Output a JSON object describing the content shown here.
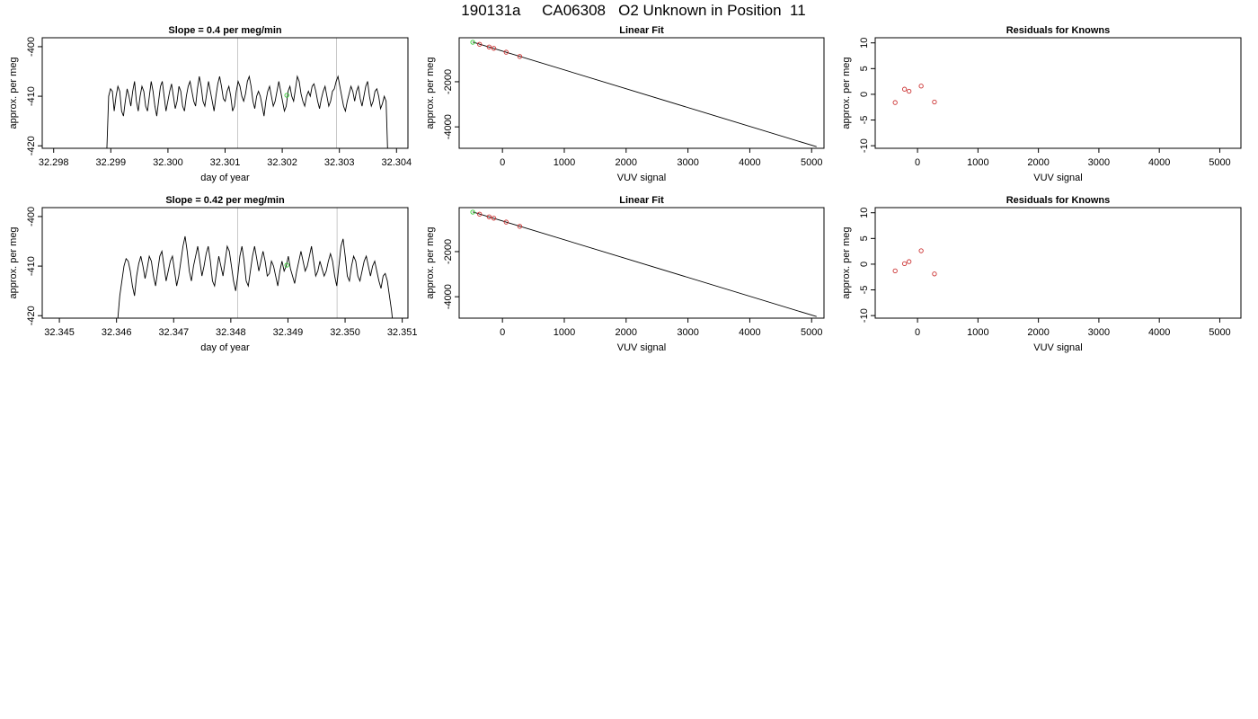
{
  "page": {
    "title": "190131a     CA06308   O2 Unknown in Position  11"
  },
  "colors": {
    "trace": "#000000",
    "marker_green": "#33cc33",
    "marker_red": "#cc3333",
    "vline": "#c8c8c8"
  },
  "chart_data": [
    {
      "type": "line",
      "title": "Slope =  0.4  per meg/min",
      "xlabel": "day of year",
      "ylabel": "approx. per meg",
      "xlim": [
        32.2978,
        32.3042
      ],
      "ylim": [
        -420.5,
        -398.2
      ],
      "xticks": [
        "32.298",
        "32.299",
        "32.300",
        "32.301",
        "32.302",
        "32.303",
        "32.304"
      ],
      "yticks": [
        "-400",
        "-410",
        "-420"
      ],
      "vlines": [
        32.30122,
        32.30295
      ],
      "series": [
        {
          "x_start": 32.29893,
          "x_end": 32.30385,
          "values": [
            -421,
            -410,
            -408.5,
            -409,
            -413,
            -410,
            -408,
            -409,
            -413,
            -414,
            -411,
            -408.5,
            -410,
            -412,
            -409,
            -407,
            -411,
            -413,
            -410,
            -408,
            -409,
            -412,
            -413,
            -410,
            -407,
            -409,
            -412,
            -414,
            -411,
            -408,
            -407,
            -410,
            -413,
            -411,
            -409,
            -407.5,
            -410,
            -412.5,
            -411,
            -408,
            -409,
            -412,
            -413,
            -410,
            -408,
            -407,
            -409,
            -411,
            -412,
            -408.5,
            -406,
            -408,
            -411,
            -412,
            -409.5,
            -407,
            -409,
            -411,
            -413,
            -410,
            -407.5,
            -406,
            -408,
            -410.5,
            -411,
            -409,
            -408,
            -410,
            -413,
            -412,
            -409,
            -407,
            -408,
            -410,
            -411,
            -409.5,
            -407,
            -406,
            -408,
            -411,
            -412.5,
            -410,
            -409,
            -410,
            -412,
            -414,
            -411,
            -409,
            -408,
            -410,
            -412,
            -411,
            -409,
            -407,
            -409,
            -411,
            -413,
            -412,
            -409,
            -408,
            -410,
            -411,
            -408.5,
            -406,
            -407,
            -409.5,
            -411,
            -412,
            -410,
            -409,
            -410,
            -408,
            -407.5,
            -409,
            -411,
            -412.5,
            -410.5,
            -409,
            -408,
            -410,
            -412,
            -411,
            -409,
            -408.5,
            -407,
            -406,
            -408,
            -410,
            -412,
            -413,
            -411,
            -409.5,
            -408,
            -409,
            -411,
            -409,
            -408,
            -410.5,
            -412,
            -410,
            -408,
            -407,
            -410,
            -412,
            -411,
            -409,
            -408.5,
            -410,
            -412.5,
            -411.5,
            -410,
            -411,
            -423
          ]
        }
      ],
      "markers": [
        {
          "x": 32.30208,
          "y": -409.8,
          "color": "green"
        }
      ]
    },
    {
      "type": "scatter",
      "title": "Linear Fit",
      "xlabel": "VUV signal",
      "ylabel": "approx. per meg",
      "xlim": [
        -700,
        5200
      ],
      "ylim": [
        -4950,
        -50
      ],
      "xticks": [
        "0",
        "1000",
        "2000",
        "3000",
        "4000",
        "5000"
      ],
      "yticks": [
        "-2000",
        "-4000"
      ],
      "fit_line": {
        "x": [
          -480,
          5080
        ],
        "y": [
          -240,
          -4880
        ]
      },
      "points": [
        {
          "x": -480,
          "y": -250,
          "color": "green"
        },
        {
          "x": -370,
          "y": -340,
          "color": "red"
        },
        {
          "x": -215,
          "y": -460,
          "color": "red"
        },
        {
          "x": -140,
          "y": -520,
          "color": "red"
        },
        {
          "x": 60,
          "y": -690,
          "color": "red"
        },
        {
          "x": 280,
          "y": -880,
          "color": "red"
        }
      ]
    },
    {
      "type": "scatter",
      "title": "Residuals for Knowns",
      "xlabel": "VUV signal",
      "ylabel": "approx. per meg",
      "xlim": [
        -700,
        5350
      ],
      "ylim": [
        -10.5,
        11
      ],
      "xticks": [
        "0",
        "1000",
        "2000",
        "3000",
        "4000",
        "5000"
      ],
      "yticks": [
        "10",
        "5",
        "0",
        "-5",
        "-10"
      ],
      "points": [
        {
          "x": -370,
          "y": -1.6,
          "color": "red"
        },
        {
          "x": -215,
          "y": 1.0,
          "color": "red"
        },
        {
          "x": -140,
          "y": 0.6,
          "color": "red"
        },
        {
          "x": 60,
          "y": 1.6,
          "color": "red"
        },
        {
          "x": 280,
          "y": -1.5,
          "color": "red"
        }
      ]
    },
    {
      "type": "line",
      "title": "Slope =  0.42  per meg/min",
      "xlabel": "day of year",
      "ylabel": "approx. per meg",
      "xlim": [
        32.3447,
        32.3511
      ],
      "ylim": [
        -420.5,
        -398.2
      ],
      "xticks": [
        "32.345",
        "32.346",
        "32.347",
        "32.348",
        "32.349",
        "32.350",
        "32.351"
      ],
      "yticks": [
        "-400",
        "-410",
        "-420"
      ],
      "vlines": [
        32.34812,
        32.34986
      ],
      "series": [
        {
          "x_start": 32.34602,
          "x_end": 32.35085,
          "values": [
            -421,
            -416,
            -413,
            -410,
            -408.5,
            -409,
            -411,
            -414,
            -416,
            -412,
            -409.5,
            -408,
            -410,
            -412.5,
            -410.5,
            -408,
            -409,
            -412,
            -414,
            -411,
            -408,
            -407,
            -410,
            -413,
            -411,
            -409,
            -408,
            -411,
            -414,
            -412,
            -409,
            -406,
            -404,
            -407,
            -411,
            -413,
            -410,
            -408,
            -406,
            -409,
            -412,
            -410,
            -407.5,
            -406,
            -409,
            -413,
            -414,
            -411,
            -408,
            -410,
            -412,
            -409,
            -406,
            -407,
            -410,
            -413,
            -415,
            -412,
            -408,
            -406,
            -409,
            -413,
            -414,
            -411,
            -408,
            -406,
            -408.5,
            -411,
            -409,
            -407,
            -409,
            -412,
            -411.5,
            -409,
            -410,
            -412,
            -414,
            -411,
            -409,
            -411,
            -410,
            -408,
            -410.5,
            -412,
            -413.5,
            -411,
            -409,
            -407,
            -409,
            -411,
            -410,
            -408,
            -406,
            -409,
            -412,
            -411,
            -409,
            -410.5,
            -412,
            -411,
            -409,
            -407.5,
            -409,
            -412,
            -414,
            -410,
            -406,
            -404.5,
            -408,
            -412,
            -413,
            -410,
            -408,
            -409,
            -412,
            -413,
            -411,
            -409,
            -408,
            -410,
            -412,
            -410,
            -409,
            -411,
            -413,
            -414.5,
            -412,
            -411.5,
            -413,
            -416,
            -419,
            -423
          ]
        }
      ],
      "markers": [
        {
          "x": 32.34898,
          "y": -409.8,
          "color": "green"
        }
      ]
    },
    {
      "type": "scatter",
      "title": "Linear Fit",
      "xlabel": "VUV signal",
      "ylabel": "approx. per meg",
      "xlim": [
        -700,
        5200
      ],
      "ylim": [
        -4950,
        -50
      ],
      "xticks": [
        "0",
        "1000",
        "2000",
        "3000",
        "4000",
        "5000"
      ],
      "yticks": [
        "-2000",
        "-4000"
      ],
      "fit_line": {
        "x": [
          -480,
          5080
        ],
        "y": [
          -240,
          -4880
        ]
      },
      "points": [
        {
          "x": -480,
          "y": -250,
          "color": "green"
        },
        {
          "x": -370,
          "y": -340,
          "color": "red"
        },
        {
          "x": -215,
          "y": -460,
          "color": "red"
        },
        {
          "x": -140,
          "y": -520,
          "color": "red"
        },
        {
          "x": 60,
          "y": -690,
          "color": "red"
        },
        {
          "x": 280,
          "y": -880,
          "color": "red"
        }
      ]
    },
    {
      "type": "scatter",
      "title": "Residuals for Knowns",
      "xlabel": "VUV signal",
      "ylabel": "approx. per meg",
      "xlim": [
        -700,
        5350
      ],
      "ylim": [
        -10.5,
        11
      ],
      "xticks": [
        "0",
        "1000",
        "2000",
        "3000",
        "4000",
        "5000"
      ],
      "yticks": [
        "10",
        "5",
        "0",
        "-5",
        "-10"
      ],
      "points": [
        {
          "x": -370,
          "y": -1.3,
          "color": "red"
        },
        {
          "x": -215,
          "y": 0.1,
          "color": "red"
        },
        {
          "x": -140,
          "y": 0.5,
          "color": "red"
        },
        {
          "x": 60,
          "y": 2.6,
          "color": "red"
        },
        {
          "x": 280,
          "y": -1.9,
          "color": "red"
        }
      ]
    }
  ]
}
